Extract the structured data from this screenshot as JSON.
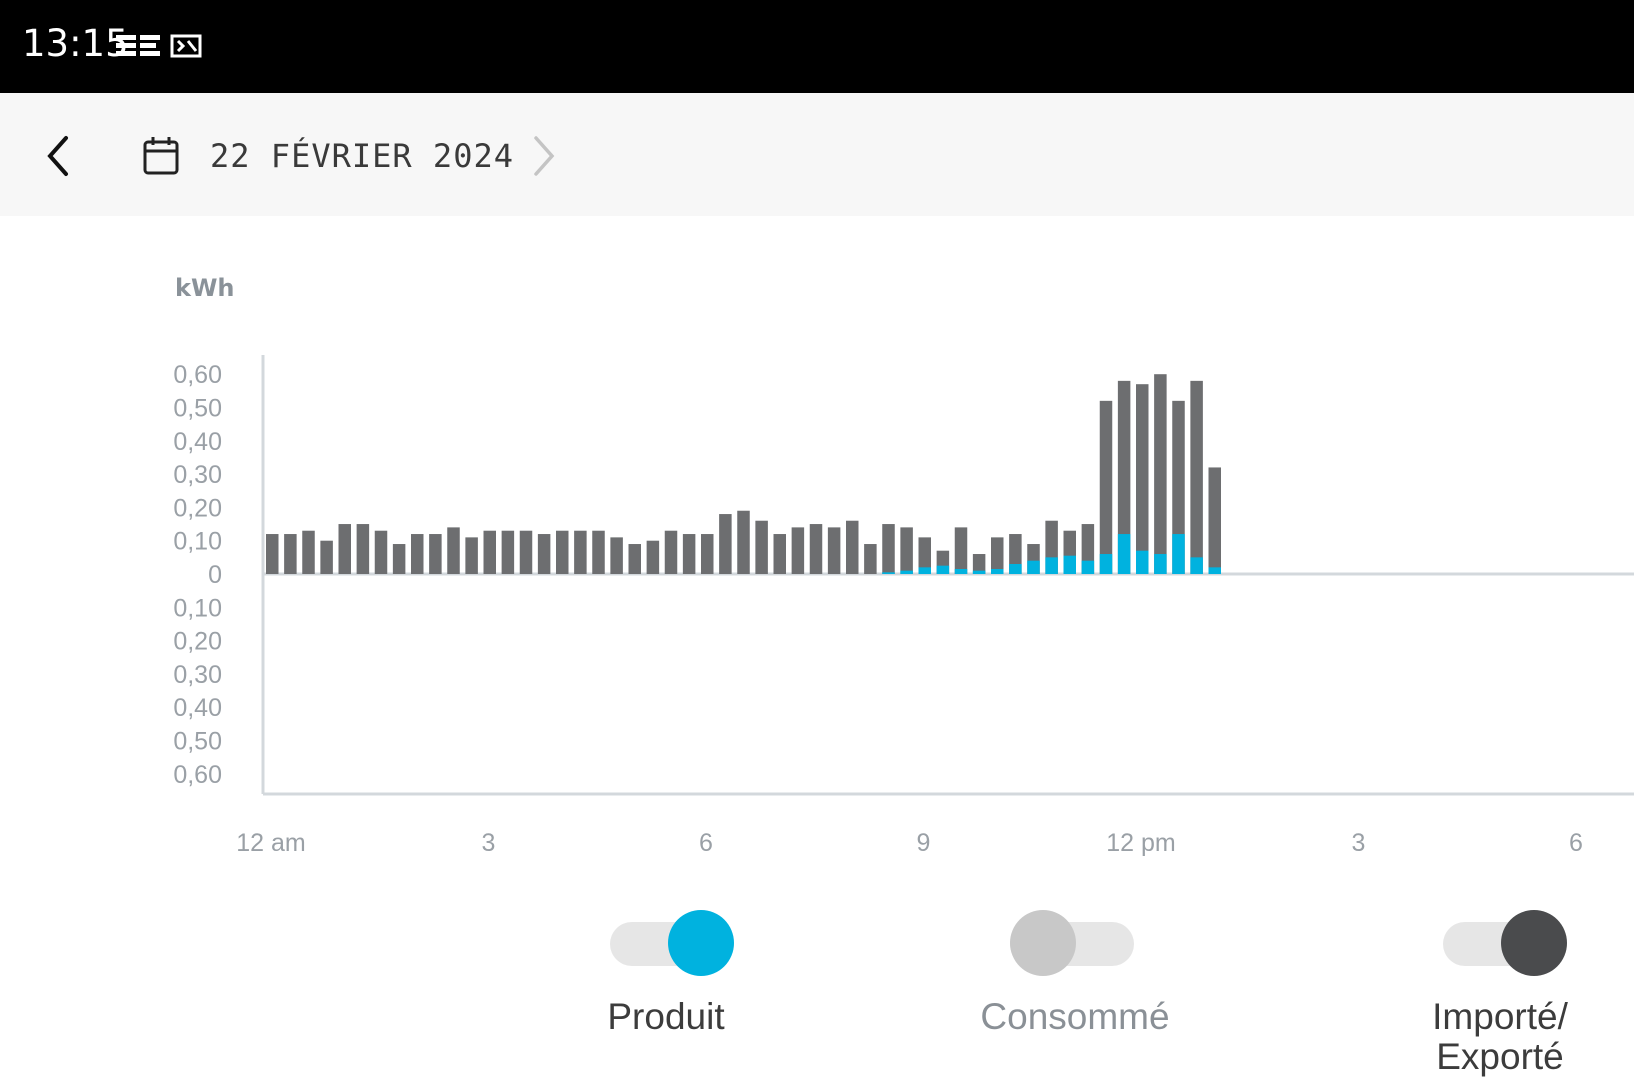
{
  "status_bar": {
    "time": "13:15"
  },
  "header": {
    "date": "22 FÉVRIER 2024"
  },
  "colors": {
    "produced": "#00b2df",
    "consumed_bar": "#6d6e70",
    "knob_consumed": "#c8c8c8",
    "knob_imported": "#4a4b4d",
    "axis": "#d3d8dc",
    "tick_text": "#9aa0a6"
  },
  "icons": {
    "back": "chevron-left-icon",
    "calendar": "calendar-icon",
    "next": "chevron-right-icon"
  },
  "legend": {
    "produced": {
      "label": "Produit",
      "on": true
    },
    "consumed": {
      "label": "Consommé",
      "on": false
    },
    "imported": {
      "label": "Importé/\nExporté",
      "on": true
    }
  },
  "chart_data": {
    "type": "bar",
    "ylabel": "kWh",
    "yticks": [
      "0,60",
      "0,50",
      "0,40",
      "0,30",
      "0,20",
      "0,10",
      "0",
      "0,10",
      "0,20",
      "0,30",
      "0,40",
      "0,50",
      "0,60"
    ],
    "ylim": [
      -0.6,
      0.6
    ],
    "xticks": [
      "12 am",
      "3",
      "6",
      "9",
      "12 pm",
      "3",
      "6"
    ],
    "interval_hours": 0.25,
    "x_hours_range": [
      0,
      18
    ],
    "series": [
      {
        "name": "Consommé",
        "values": [
          0.12,
          0.12,
          0.13,
          0.1,
          0.15,
          0.15,
          0.13,
          0.09,
          0.12,
          0.12,
          0.14,
          0.11,
          0.13,
          0.13,
          0.13,
          0.12,
          0.13,
          0.13,
          0.13,
          0.11,
          0.09,
          0.1,
          0.13,
          0.12,
          0.12,
          0.18,
          0.19,
          0.16,
          0.12,
          0.14,
          0.15,
          0.14,
          0.16,
          0.09,
          0.15,
          0.14,
          0.11,
          0.07,
          0.14,
          0.06,
          0.11,
          0.12,
          0.09,
          0.16,
          0.13,
          0.15,
          0.52,
          0.58,
          0.57,
          0.6,
          0.52,
          0.58,
          0.32
        ]
      },
      {
        "name": "Produit",
        "values": [
          0,
          0,
          0,
          0,
          0,
          0,
          0,
          0,
          0,
          0,
          0,
          0,
          0,
          0,
          0,
          0,
          0,
          0,
          0,
          0,
          0,
          0,
          0,
          0,
          0,
          0,
          0,
          0,
          0,
          0,
          0,
          0,
          0,
          0,
          0.005,
          0.01,
          0.02,
          0.025,
          0.015,
          0.01,
          0.015,
          0.03,
          0.04,
          0.05,
          0.055,
          0.04,
          0.06,
          0.12,
          0.07,
          0.06,
          0.12,
          0.05,
          0.02
        ]
      }
    ]
  }
}
